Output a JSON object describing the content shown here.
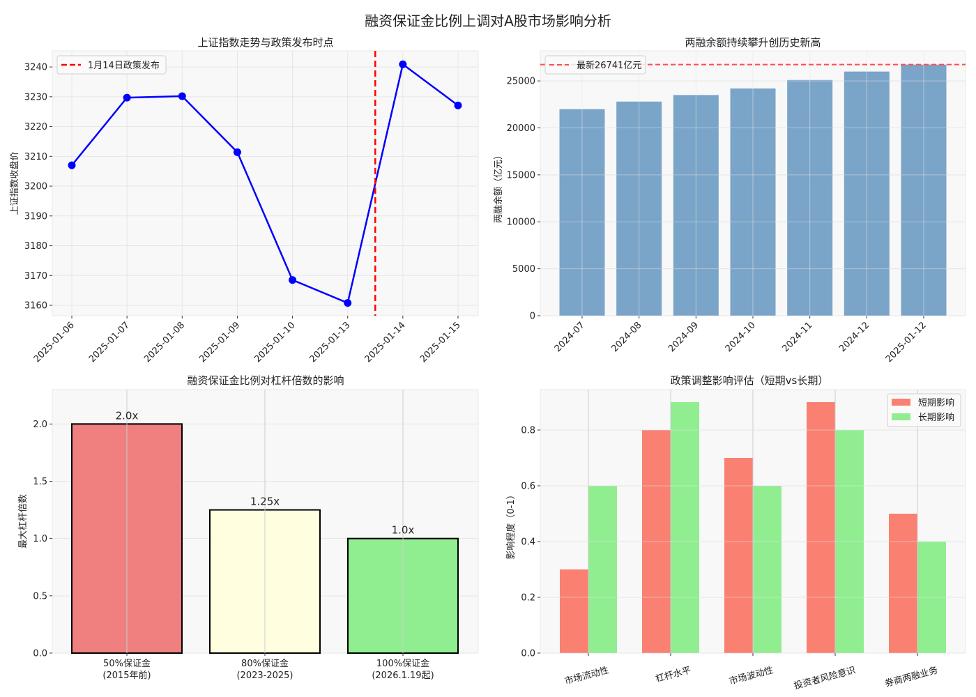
{
  "figure": {
    "title": "融资保证金比例上调对A股市场影响分析"
  },
  "chart_data": [
    {
      "id": "sh_index",
      "type": "line",
      "title": "上证指数走势与政策发布时点",
      "xlabel": "",
      "ylabel": "上证指数收盘价",
      "categories": [
        "2025-01-06",
        "2025-01-07",
        "2025-01-08",
        "2025-01-09",
        "2025-01-10",
        "2025-01-13",
        "2025-01-14",
        "2025-01-15"
      ],
      "series": [
        {
          "name": "上证指数",
          "color": "#0000ff",
          "values": [
            3207.0,
            3229.7,
            3230.2,
            3211.4,
            3168.5,
            3160.8,
            3240.9,
            3227.1
          ]
        }
      ],
      "yticks": [
        3160,
        3170,
        3180,
        3190,
        3200,
        3210,
        3220,
        3230,
        3240
      ],
      "ylim": [
        3156.5,
        3245.4
      ],
      "grid": true,
      "annotations": [
        {
          "type": "vline",
          "x_between": [
            "2025-01-13",
            "2025-01-14"
          ],
          "x_pos": 5.5,
          "color": "#ff0000",
          "style": "dashed",
          "label": "1月14日政策发布"
        }
      ],
      "legend": {
        "position": "upper left",
        "entries": [
          "1月14日政策发布"
        ]
      }
    },
    {
      "id": "margin_balance",
      "type": "bar",
      "title": "两融余额持续攀升创历史新高",
      "xlabel": "",
      "ylabel": "两融余额（亿元）",
      "categories": [
        "2024-07",
        "2024-08",
        "2024-09",
        "2024-10",
        "2024-11",
        "2024-12",
        "2025-01-12"
      ],
      "values": [
        22000,
        22800,
        23500,
        24200,
        25100,
        26000,
        26741
      ],
      "bar_color": "#7aa4c8",
      "yticks": [
        0,
        5000,
        10000,
        15000,
        20000,
        25000
      ],
      "ylim": [
        0,
        28200
      ],
      "grid": true,
      "annotations": [
        {
          "type": "hline",
          "y": 26741,
          "color": "#ff4c4c",
          "style": "dashed",
          "label": "最新26741亿元"
        }
      ],
      "legend": {
        "position": "upper left",
        "entries": [
          "最新26741亿元"
        ]
      }
    },
    {
      "id": "leverage",
      "type": "bar",
      "title": "融资保证金比例对杠杆倍数的影响",
      "xlabel": "",
      "ylabel": "最大杠杆倍数",
      "categories": [
        "50%保证金\n(2015年前)",
        "80%保证金\n(2023-2025)",
        "100%保证金\n(2026.1.19起)"
      ],
      "category_lines": [
        [
          "50%保证金",
          "(2015年前)"
        ],
        [
          "80%保证金",
          "(2023-2025)"
        ],
        [
          "100%保证金",
          "(2026.1.19起)"
        ]
      ],
      "values": [
        2.0,
        1.25,
        1.0
      ],
      "value_labels": [
        "2.0x",
        "1.25x",
        "1.0x"
      ],
      "colors": [
        "#f08080",
        "#ffffe0",
        "#90ee90"
      ],
      "yticks": [
        0.0,
        0.5,
        1.0,
        1.5,
        2.0
      ],
      "ytick_labels": [
        "0.0",
        "0.5",
        "1.0",
        "1.5",
        "2.0"
      ],
      "ylim": [
        0,
        2.3
      ],
      "grid": true
    },
    {
      "id": "impact",
      "type": "bar",
      "title": "政策调整影响评估（短期vs长期）",
      "xlabel": "",
      "ylabel": "影响程度（0-1）",
      "categories": [
        "市场流动性",
        "杠杆水平",
        "市场波动性",
        "投资者风险意识",
        "券商两融业务"
      ],
      "series": [
        {
          "name": "短期影响",
          "color": "#fa8072",
          "values": [
            0.3,
            0.8,
            0.7,
            0.9,
            0.5
          ]
        },
        {
          "name": "长期影响",
          "color": "#90ee90",
          "values": [
            0.6,
            0.9,
            0.6,
            0.8,
            0.4
          ]
        }
      ],
      "yticks": [
        0.0,
        0.2,
        0.4,
        0.6,
        0.8
      ],
      "ytick_labels": [
        "0.0",
        "0.2",
        "0.4",
        "0.6",
        "0.8"
      ],
      "ylim": [
        0,
        0.945
      ],
      "grid": true,
      "legend": {
        "position": "upper right",
        "entries": [
          "短期影响",
          "长期影响"
        ]
      }
    }
  ]
}
